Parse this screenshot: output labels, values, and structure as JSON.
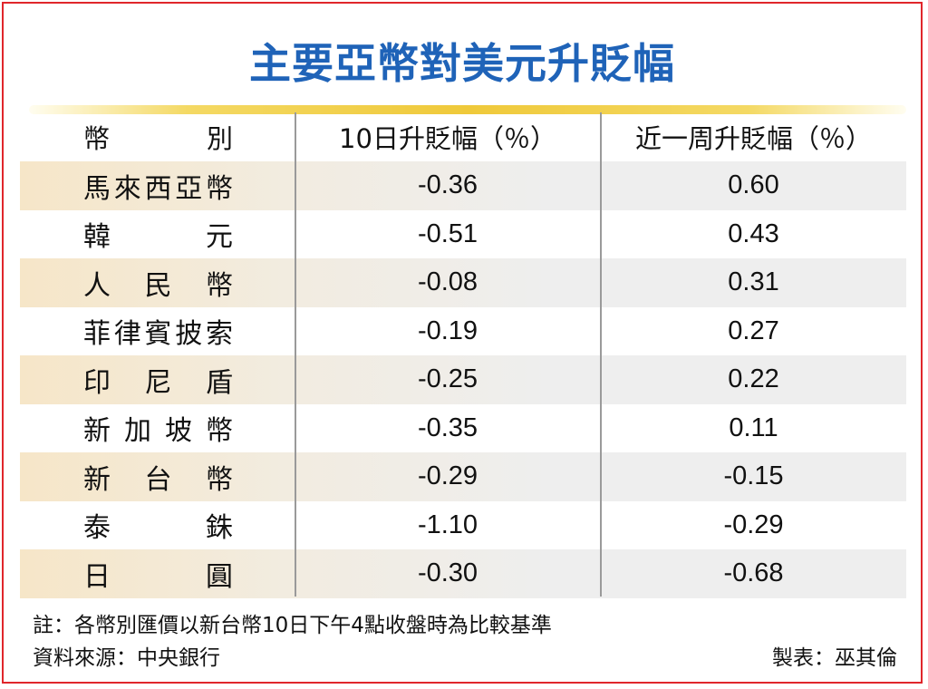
{
  "chart_data": {
    "type": "table",
    "title": "主要亞幣對美元升貶幅",
    "columns": [
      "幣　　別",
      "10日升貶幅（％）",
      "近一周升貶幅（％）"
    ],
    "rows": [
      {
        "currency": "馬來西亞幣",
        "day10": "-0.36",
        "week": "0.60"
      },
      {
        "currency": "韓　　元",
        "day10": "-0.51",
        "week": "0.43"
      },
      {
        "currency": "人民幣",
        "day10": "-0.08",
        "week": "0.31"
      },
      {
        "currency": "菲律賓披索",
        "day10": "-0.19",
        "week": "0.27"
      },
      {
        "currency": "印尼盾",
        "day10": "-0.25",
        "week": "0.22"
      },
      {
        "currency": "新加坡幣",
        "day10": "-0.35",
        "week": "0.11"
      },
      {
        "currency": "新台幣",
        "day10": "-0.29",
        "week": "-0.15"
      },
      {
        "currency": "泰　　銖",
        "day10": "-1.10",
        "week": "-0.29"
      },
      {
        "currency": "日　　圓",
        "day10": "-0.30",
        "week": "-0.68"
      }
    ]
  },
  "notes": {
    "footnote": "註：各幣別匯價以新台幣10日下午4點收盤時為比較基準",
    "source": "資料來源：中央銀行",
    "credit": "製表：巫其倫"
  },
  "colors": {
    "title": "#1f63b8",
    "frame": "#e0262b",
    "rule": "#efc93a",
    "stripe": "#eeeeee"
  }
}
